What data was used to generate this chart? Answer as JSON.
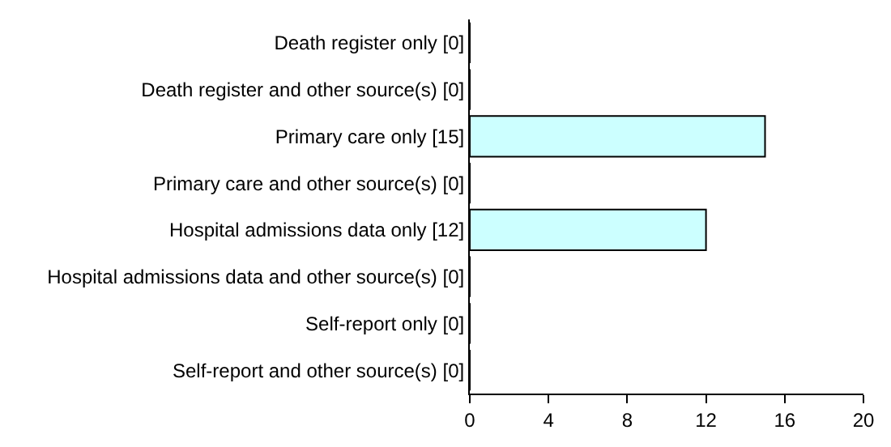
{
  "chart_data": {
    "type": "bar",
    "orientation": "horizontal",
    "categories": [
      "Death register only [0]",
      "Death register and other source(s) [0]",
      "Primary care only [15]",
      "Primary care and other source(s) [0]",
      "Hospital admissions data only [12]",
      "Hospital admissions data and other source(s) [0]",
      "Self-report only [0]",
      "Self-report and other source(s) [0]"
    ],
    "values": [
      0,
      0,
      15,
      0,
      12,
      0,
      0,
      0
    ],
    "color": "#ccffff",
    "xlim": [
      0,
      20
    ],
    "xticks": [
      0,
      4,
      8,
      12,
      16,
      20
    ],
    "grid": false,
    "legend": false
  }
}
